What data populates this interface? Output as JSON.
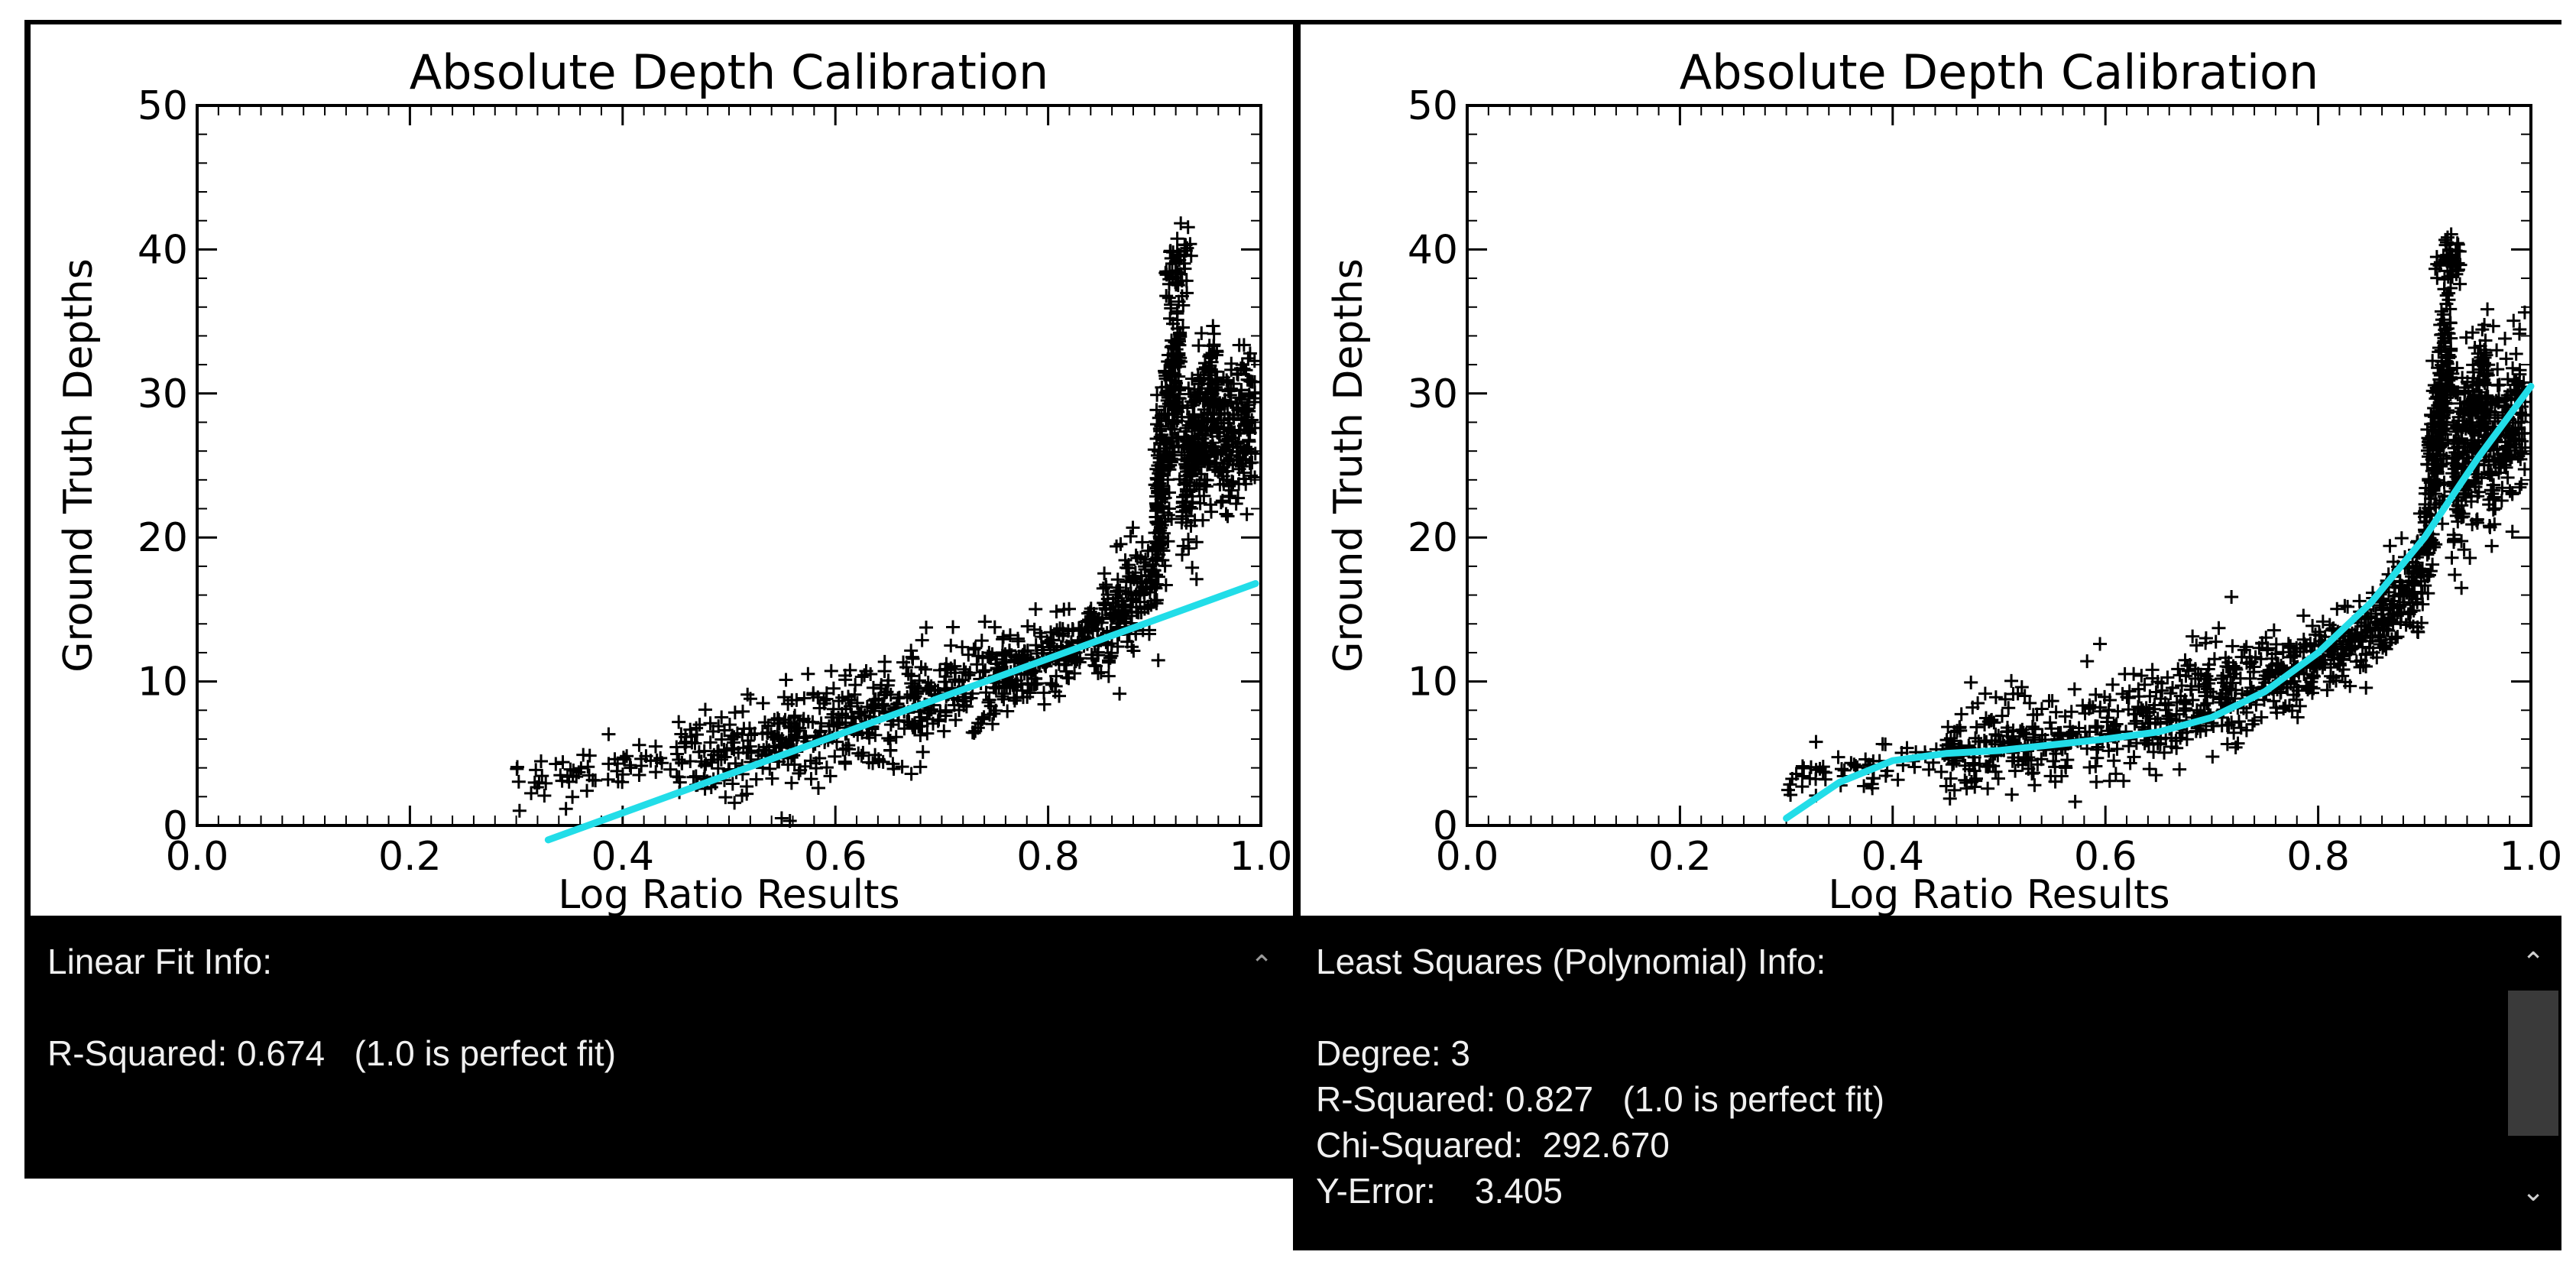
{
  "windows": [
    {
      "id": "left",
      "info": {
        "lines": [
          "Linear Fit Info:",
          "",
          "R-Squared: 0.674   (1.0 is perfect fit)"
        ],
        "scroll_up_icon": "chevron-up-icon"
      }
    },
    {
      "id": "right",
      "info": {
        "lines": [
          "Least Squares (Polynomial) Info:",
          "",
          "Degree: 3",
          "R-Squared: 0.827   (1.0 is perfect fit)",
          "Chi-Squared:  292.670",
          "Y-Error:    3.405"
        ],
        "scroll_up_icon": "chevron-up-icon",
        "scroll_down_icon": "chevron-down-icon"
      }
    }
  ],
  "chart_data": [
    {
      "type": "scatter",
      "title": "Absolute Depth Calibration",
      "xlabel": "Log Ratio Results",
      "ylabel": "Ground Truth Depths",
      "xlim": [
        0.0,
        1.0
      ],
      "ylim": [
        0,
        50
      ],
      "x_ticks": [
        "0.0",
        "0.2",
        "0.4",
        "0.6",
        "0.8",
        "1.0"
      ],
      "y_ticks": [
        "0",
        "10",
        "20",
        "30",
        "40",
        "50"
      ],
      "point_color": "#000000",
      "point_marker": "+",
      "fit_color": "#22dde8",
      "fit": {
        "kind": "linear",
        "x": [
          0.33,
          0.995
        ],
        "y": [
          -1.0,
          16.8
        ]
      },
      "point_clouds": [
        {
          "x": [
            0.3,
            0.45
          ],
          "y_center": [
            3.2,
            4.5
          ],
          "spread": 1.6,
          "count": 60
        },
        {
          "x": [
            0.45,
            0.6
          ],
          "y_center": [
            4.8,
            6.8
          ],
          "spread": 3.4,
          "count": 220
        },
        {
          "x": [
            0.6,
            0.75
          ],
          "y_center": [
            7.0,
            10.0
          ],
          "spread": 3.6,
          "count": 260
        },
        {
          "x": [
            0.75,
            0.85
          ],
          "y_center": [
            10.2,
            13.4
          ],
          "spread": 2.6,
          "count": 220
        },
        {
          "x": [
            0.85,
            0.9
          ],
          "y_center": [
            13.6,
            17.5
          ],
          "spread": 3.0,
          "count": 140
        },
        {
          "x": [
            0.9,
            0.925
          ],
          "y_center": [
            20.0,
            34.0
          ],
          "spread": 7.0,
          "count": 250
        },
        {
          "x": [
            0.925,
            0.96
          ],
          "y_center": [
            24.0,
            30.0
          ],
          "spread": 6.0,
          "count": 260
        },
        {
          "x": [
            0.96,
            0.995
          ],
          "y_center": [
            26.0,
            29.0
          ],
          "spread": 5.0,
          "count": 160
        },
        {
          "x": [
            0.91,
            0.935
          ],
          "y_center": [
            38.5,
            39.5
          ],
          "spread": 2.2,
          "count": 40
        }
      ]
    },
    {
      "type": "scatter",
      "title": "Absolute Depth Calibration",
      "xlabel": "Log Ratio Results",
      "ylabel": "Ground Truth Depths",
      "xlim": [
        0.0,
        1.0
      ],
      "ylim": [
        0,
        50
      ],
      "x_ticks": [
        "0.0",
        "0.2",
        "0.4",
        "0.6",
        "0.8",
        "1.0"
      ],
      "y_ticks": [
        "0",
        "10",
        "20",
        "30",
        "40",
        "50"
      ],
      "point_color": "#000000",
      "point_marker": "+",
      "fit_color": "#22dde8",
      "fit": {
        "kind": "polynomial",
        "degree": 3,
        "x": [
          0.3,
          0.35,
          0.4,
          0.45,
          0.5,
          0.55,
          0.6,
          0.65,
          0.7,
          0.75,
          0.8,
          0.85,
          0.9,
          0.95,
          1.0
        ],
        "y": [
          0.5,
          3.0,
          4.5,
          5.0,
          5.2,
          5.6,
          6.0,
          6.5,
          7.5,
          9.3,
          12.0,
          15.5,
          20.0,
          25.5,
          30.5
        ]
      },
      "point_clouds": [
        {
          "x": [
            0.3,
            0.45
          ],
          "y_center": [
            3.2,
            4.5
          ],
          "spread": 1.6,
          "count": 60
        },
        {
          "x": [
            0.45,
            0.6
          ],
          "y_center": [
            4.8,
            6.8
          ],
          "spread": 3.4,
          "count": 220
        },
        {
          "x": [
            0.6,
            0.75
          ],
          "y_center": [
            7.0,
            10.0
          ],
          "spread": 3.6,
          "count": 260
        },
        {
          "x": [
            0.75,
            0.85
          ],
          "y_center": [
            10.2,
            13.4
          ],
          "spread": 2.6,
          "count": 220
        },
        {
          "x": [
            0.85,
            0.9
          ],
          "y_center": [
            13.6,
            17.5
          ],
          "spread": 3.0,
          "count": 140
        },
        {
          "x": [
            0.9,
            0.925
          ],
          "y_center": [
            20.0,
            34.0
          ],
          "spread": 7.0,
          "count": 250
        },
        {
          "x": [
            0.925,
            0.96
          ],
          "y_center": [
            24.0,
            30.0
          ],
          "spread": 6.0,
          "count": 260
        },
        {
          "x": [
            0.96,
            0.995
          ],
          "y_center": [
            26.0,
            29.0
          ],
          "spread": 5.0,
          "count": 160
        },
        {
          "x": [
            0.91,
            0.935
          ],
          "y_center": [
            38.5,
            39.5
          ],
          "spread": 2.2,
          "count": 40
        }
      ]
    }
  ]
}
